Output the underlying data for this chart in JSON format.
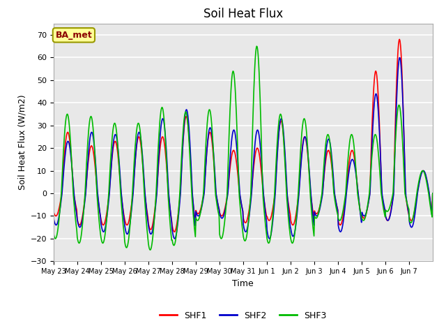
{
  "title": "Soil Heat Flux",
  "ylabel": "Soil Heat Flux (W/m2)",
  "xlabel": "Time",
  "ylim": [
    -30,
    75
  ],
  "yticks": [
    -30,
    -20,
    -10,
    0,
    10,
    20,
    30,
    40,
    50,
    60,
    70
  ],
  "colors": {
    "SHF1": "#ff0000",
    "SHF2": "#0000cc",
    "SHF3": "#00bb00"
  },
  "annotation_text": "BA_met",
  "annotation_color": "#8b0000",
  "annotation_bg": "#ffff99",
  "annotation_edge": "#999900",
  "fig_bg": "#ffffff",
  "plot_bg": "#e8e8e8",
  "grid_color": "#ffffff",
  "xtick_labels": [
    "May 23",
    "May 24",
    "May 25",
    "May 26",
    "May 27",
    "May 28",
    "May 29",
    "May 30",
    "May 31",
    "Jun 1",
    "Jun 2",
    "Jun 3",
    "Jun 4",
    "Jun 5",
    "Jun 6",
    "Jun 7"
  ],
  "num_days": 16,
  "title_fontsize": 12,
  "label_fontsize": 9,
  "tick_fontsize": 8,
  "linewidth": 1.2,
  "day_amps_pos_shf1": [
    27,
    21,
    23,
    25,
    25,
    34,
    27,
    19,
    20,
    32,
    25,
    19,
    19,
    54,
    68,
    10
  ],
  "day_amps_neg_shf1": [
    10,
    14,
    14,
    14,
    16,
    17,
    9,
    10,
    13,
    12,
    14,
    9,
    14,
    11,
    12,
    12
  ],
  "day_amps_pos_shf2": [
    23,
    27,
    26,
    27,
    33,
    37,
    29,
    28,
    28,
    33,
    25,
    24,
    15,
    44,
    60,
    10
  ],
  "day_amps_neg_shf2": [
    14,
    15,
    17,
    18,
    18,
    20,
    10,
    11,
    17,
    20,
    19,
    10,
    17,
    10,
    12,
    15
  ],
  "day_amps_pos_shf3": [
    35,
    34,
    31,
    31,
    38,
    36,
    37,
    54,
    65,
    35,
    33,
    26,
    26,
    26,
    39,
    10
  ],
  "day_amps_neg_shf3": [
    20,
    22,
    22,
    24,
    25,
    23,
    12,
    20,
    21,
    22,
    22,
    11,
    12,
    12,
    8,
    13
  ],
  "phase_shf1": 0.35,
  "phase_shf2": 0.36,
  "phase_shf3": 0.33
}
